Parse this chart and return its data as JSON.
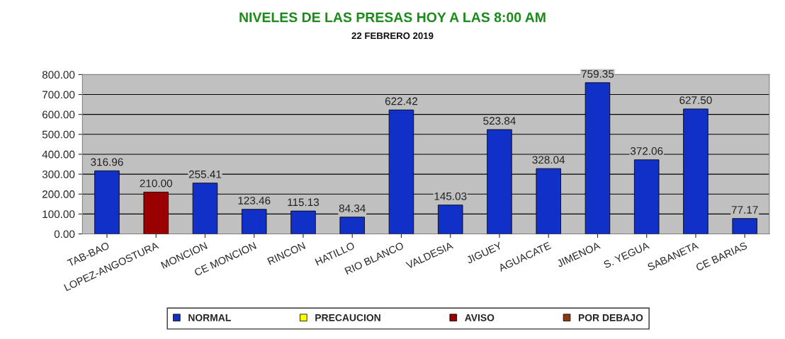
{
  "chart_data": {
    "type": "bar",
    "title": "NIVELES DE LAS PRESAS HOY A LAS 8:00 AM",
    "subtitle": "22 FEBRERO 2019",
    "categories": [
      "TAB-BAO",
      "LOPEZ-ANGOSTURA",
      "MONCION",
      "CE MONCION",
      "RINCON",
      "HATILLO",
      "RIO BLANCO",
      "VALDESIA",
      "JIGUEY",
      "AGUACATE",
      "JIMENOA",
      "S. YEGUA",
      "SABANETA",
      "CE BARIAS"
    ],
    "stacked": true,
    "series": [
      {
        "name": "NORMAL",
        "color": "#1030c8",
        "values": [
          316.96,
          null,
          255.41,
          123.46,
          115.13,
          84.34,
          622.42,
          145.03,
          523.84,
          328.04,
          759.35,
          372.06,
          627.5,
          77.17
        ],
        "value_labels": [
          "316.96",
          null,
          "255.41",
          "123.46",
          "115.13",
          "84.34",
          "622.42",
          "145.03",
          "523.84",
          "328.04",
          "759.35",
          "372.06",
          "627.50",
          "77.17"
        ]
      },
      {
        "name": "PRECAUCION",
        "color": "#ffff00",
        "values": [
          null,
          null,
          null,
          null,
          null,
          null,
          null,
          null,
          null,
          null,
          null,
          null,
          null,
          null
        ]
      },
      {
        "name": "AVISO",
        "color": "#9b0000",
        "values": [
          null,
          210.0,
          null,
          null,
          null,
          null,
          null,
          null,
          null,
          null,
          null,
          null,
          null,
          null
        ],
        "value_labels": [
          null,
          "210.00",
          null,
          null,
          null,
          null,
          null,
          null,
          null,
          null,
          null,
          null,
          null,
          null
        ]
      },
      {
        "name": "POR DEBAJO",
        "color": "#8b3a10",
        "values": [
          null,
          null,
          null,
          null,
          null,
          null,
          null,
          null,
          null,
          null,
          null,
          null,
          null,
          null
        ]
      }
    ],
    "ylim": [
      0,
      800
    ],
    "yticks": [
      {
        "value": 0,
        "label": "0.00"
      },
      {
        "value": 100,
        "label": "100.00"
      },
      {
        "value": 200,
        "label": "200.00"
      },
      {
        "value": 300,
        "label": "300.00"
      },
      {
        "value": 400,
        "label": "400.00"
      },
      {
        "value": 500,
        "label": "500.00"
      },
      {
        "value": 600,
        "label": "600.00"
      },
      {
        "value": 700,
        "label": "700.00"
      },
      {
        "value": 800,
        "label": "800.00"
      }
    ],
    "grid": "y",
    "legend": "bottom"
  }
}
